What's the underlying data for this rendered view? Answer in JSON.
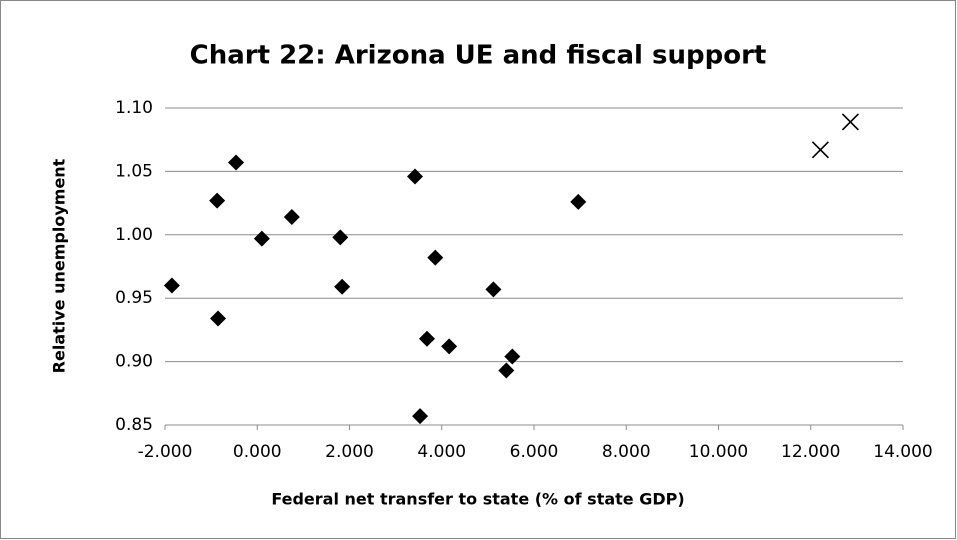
{
  "chart_data": {
    "type": "scatter",
    "title": "Chart 22: Arizona UE and fiscal support",
    "xlabel": "Federal net transfer to state (% of state GDP)",
    "ylabel": "Relative unemployment",
    "xlim": [
      -2,
      14
    ],
    "xticks": [
      {
        "value": -2,
        "label": "-2.000"
      },
      {
        "value": 0,
        "label": "0.000"
      },
      {
        "value": 2,
        "label": "2.000"
      },
      {
        "value": 4,
        "label": "4.000"
      },
      {
        "value": 6,
        "label": "6.000"
      },
      {
        "value": 8,
        "label": "8.000"
      },
      {
        "value": 10,
        "label": "10.000"
      },
      {
        "value": 12,
        "label": "12.000"
      },
      {
        "value": 14,
        "label": "14.000"
      }
    ],
    "ylim": [
      0.85,
      1.1
    ],
    "yticks": [
      0.85,
      {
        "value": 0.9,
        "label": "0.90"
      },
      0.95,
      {
        "value": 1.0,
        "label": "1.00"
      },
      1.05,
      {
        "value": 1.1,
        "label": "1.10"
      }
    ],
    "grid": true,
    "series": [
      {
        "marker": "diamond",
        "color": "#000000",
        "x": [
          -0.46,
          -0.87,
          -1.85,
          -0.85,
          0.1,
          0.75,
          1.8,
          1.84,
          3.42,
          3.86,
          3.68,
          4.16,
          3.53,
          5.12,
          5.53,
          5.4,
          6.96
        ],
        "values": [
          1.057,
          1.027,
          0.96,
          0.934,
          0.997,
          1.014,
          0.998,
          0.959,
          1.046,
          0.982,
          0.918,
          0.912,
          0.857,
          0.957,
          0.904,
          0.893,
          1.026
        ]
      },
      {
        "marker": "x",
        "color": "#000000",
        "x": [
          12.21,
          12.86
        ],
        "values": [
          1.067,
          1.089
        ]
      }
    ]
  }
}
